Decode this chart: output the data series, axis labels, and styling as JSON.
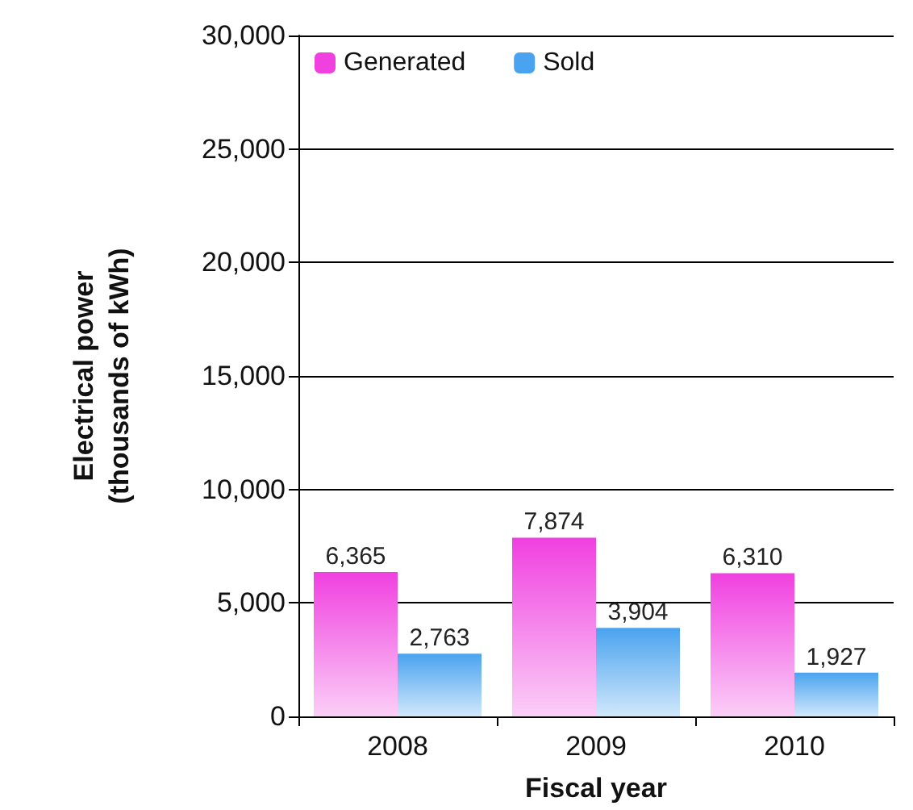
{
  "chart_data": {
    "type": "bar",
    "xlabel": "Fiscal year",
    "ylabel": "Electrical power\n(thousands of kWh)",
    "categories": [
      "2008",
      "2009",
      "2010"
    ],
    "series": [
      {
        "name": "Generated",
        "color": "#f040e0",
        "values": [
          6365,
          7874,
          6310
        ],
        "value_labels": [
          "6,365",
          "7,874",
          "6,310"
        ]
      },
      {
        "name": "Sold",
        "color": "#4aa3ef",
        "values": [
          2763,
          3904,
          1927
        ],
        "value_labels": [
          "2,763",
          "3,904",
          "1,927"
        ]
      }
    ],
    "ylim": [
      0,
      30000
    ],
    "yticks": [
      0,
      {
        "value": 5000,
        "label": "5,000"
      },
      {
        "value": 10000,
        "label": "10,000"
      },
      {
        "value": 15000,
        "label": "15,000"
      },
      {
        "value": 20000,
        "label": "20,000"
      },
      {
        "value": 25000,
        "label": "25,000"
      },
      {
        "value": 30000,
        "label": "30,000"
      }
    ],
    "grid": "y",
    "legend": "top left"
  }
}
